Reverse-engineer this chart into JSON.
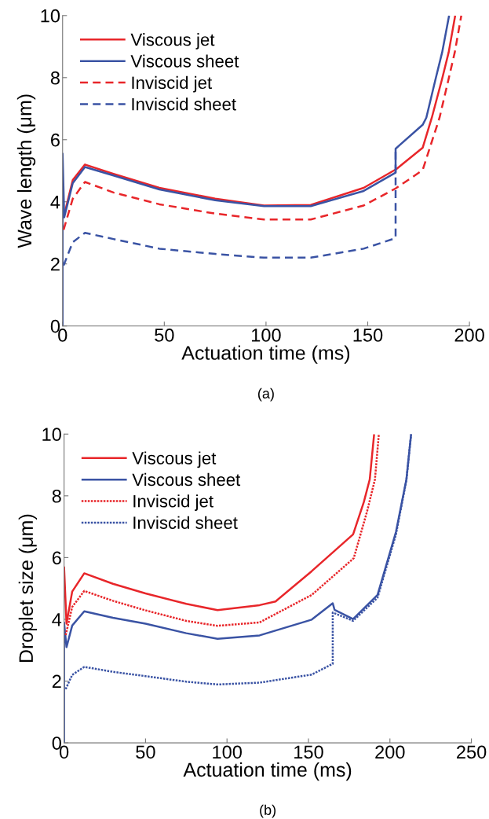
{
  "chart_data": [
    {
      "type": "line",
      "xlabel": "Actuation time (ms)",
      "ylabel": "Wave length (μm)",
      "annotations": [
        "(a)"
      ],
      "xlim": [
        0,
        200
      ],
      "ylim": [
        0,
        10
      ],
      "xticks": [
        0,
        50,
        100,
        150,
        200
      ],
      "yticks": [
        0,
        2,
        4,
        6,
        8,
        10
      ],
      "grid": false,
      "legend": "top left",
      "marker": "none",
      "series": [
        {
          "name": "Viscous jet",
          "color": "#e8262a",
          "line_style": "solid",
          "x": [
            0.5,
            5,
            11,
            25,
            47.6,
            75,
            99,
            122,
            148,
            164,
            177,
            181.5,
            186.6,
            189.8,
            193
          ],
          "values": [
            3.5,
            4.7,
            5.2,
            4.9,
            4.45,
            4.1,
            3.88,
            3.9,
            4.45,
            5.05,
            5.74,
            6.71,
            7.97,
            8.82,
            10
          ]
        },
        {
          "name": "Viscous sheet",
          "color": "#3a53a4",
          "line_style": "solid",
          "x": [
            0,
            0,
            0.8,
            5,
            11,
            25,
            47.6,
            75,
            99,
            122,
            148,
            163.7,
            163.7,
            177,
            178.8,
            183.4,
            186.6,
            190
          ],
          "values": [
            0,
            5.55,
            3.5,
            4.6,
            5.12,
            4.85,
            4.4,
            4.05,
            3.86,
            3.86,
            4.35,
            4.94,
            5.71,
            6.48,
            6.71,
            7.97,
            8.82,
            10
          ]
        },
        {
          "name": "Inviscid jet",
          "color": "#e8262a",
          "line_style": "dashed",
          "x": [
            0.5,
            5,
            11,
            25,
            47.6,
            75,
            99,
            122,
            148,
            163.7,
            177,
            185.3,
            189.8,
            192.8,
            196
          ],
          "values": [
            3.1,
            4.1,
            4.64,
            4.3,
            3.92,
            3.62,
            3.43,
            3.43,
            3.88,
            4.43,
            5.02,
            6.71,
            7.97,
            8.82,
            10
          ]
        },
        {
          "name": "Inviscid sheet",
          "color": "#3a53a4",
          "line_style": "dashed",
          "x": [
            0.5,
            5,
            11,
            25,
            47.6,
            75,
            99,
            122,
            148,
            163.7,
            163.7
          ],
          "values": [
            1.95,
            2.7,
            3.0,
            2.8,
            2.49,
            2.32,
            2.2,
            2.2,
            2.49,
            2.83,
            5.71
          ]
        }
      ]
    },
    {
      "type": "line",
      "xlabel": "Actuation time (ms)",
      "ylabel": "Droplet size (μm)",
      "annotations": [
        "(b)"
      ],
      "xlim": [
        0,
        250
      ],
      "ylim": [
        0,
        10
      ],
      "xticks": [
        0,
        50,
        100,
        150,
        200,
        250
      ],
      "yticks": [
        0,
        2,
        4,
        6,
        8,
        10
      ],
      "grid": false,
      "legend": "top left",
      "marker": "none",
      "series": [
        {
          "name": "Viscous jet",
          "color": "#e8262a",
          "line_style": "solid",
          "x": [
            0,
            1.5,
            5,
            12.4,
            30,
            50,
            75,
            94.2,
            120,
            129.8,
            152,
            177.4,
            184,
            187.6,
            190.3
          ],
          "values": [
            5.71,
            3.86,
            4.9,
            5.49,
            5.15,
            4.84,
            4.5,
            4.3,
            4.46,
            4.58,
            5.56,
            6.75,
            7.8,
            8.53,
            10
          ]
        },
        {
          "name": "Viscous sheet",
          "color": "#3a53a4",
          "line_style": "solid",
          "x": [
            0,
            0,
            1.5,
            5,
            12.4,
            30,
            50,
            75,
            94.2,
            120,
            152,
            164.9,
            166,
            177.4,
            192.4,
            203.7,
            210.1,
            213
          ],
          "values": [
            0,
            3.9,
            3.1,
            3.8,
            4.26,
            4.05,
            3.86,
            3.55,
            3.37,
            3.48,
            3.99,
            4.52,
            4.31,
            4.01,
            4.79,
            6.83,
            8.53,
            10
          ]
        },
        {
          "name": "Inviscid jet",
          "color": "#e8262a",
          "line_style": "dotted",
          "x": [
            1,
            5,
            12.4,
            30,
            50,
            75,
            94.2,
            120,
            152,
            177.8,
            186,
            190.8,
            193.2
          ],
          "values": [
            3.49,
            4.4,
            4.92,
            4.6,
            4.29,
            3.95,
            3.79,
            3.9,
            4.79,
            5.98,
            7.5,
            8.53,
            10
          ]
        },
        {
          "name": "Inviscid sheet",
          "color": "#3a53a4",
          "line_style": "dotted",
          "x": [
            1,
            5,
            12.4,
            30,
            50,
            75,
            94.2,
            120,
            152,
            164.9,
            164.9,
            177.4,
            192.4,
            203.7,
            210.1,
            213
          ],
          "values": [
            1.74,
            2.2,
            2.46,
            2.3,
            2.16,
            1.98,
            1.89,
            1.95,
            2.21,
            2.56,
            4.22,
            3.95,
            4.7,
            6.75,
            8.5,
            10
          ]
        }
      ]
    }
  ]
}
